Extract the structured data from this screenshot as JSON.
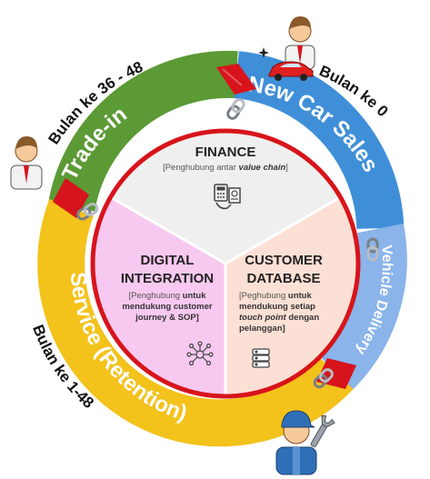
{
  "ring_segments": {
    "new_car_sales": "New Car Sales",
    "vehicle_delivery": "Vehicle Delivery",
    "service_retention": "Service (Retention)",
    "trade_in": "Trade-in"
  },
  "month_labels": {
    "new_car_sales": "Bulan ke 0",
    "trade_in": "Bulan ke 36 - 48",
    "service": "Bulan ke 1-48"
  },
  "center": {
    "finance": {
      "title": "FINANCE",
      "sub_prefix": "[Penghubung antar ",
      "sub_emphasis": "value chain",
      "sub_suffix": "]"
    },
    "digital_integration": {
      "title_line1": "DIGITAL",
      "title_line2": "INTEGRATION",
      "sub_line1_prefix": "[Penghubung ",
      "sub_line1_bold": "untuk",
      "sub_line2": "mendukung customer",
      "sub_line3": "journey & SOP]"
    },
    "customer_database": {
      "title_line1": "CUSTOMER",
      "title_line2": "DATABASE",
      "sub_line1_prefix": "[Peghubung ",
      "sub_line1_bold": "untuk",
      "sub_line2": "mendukung setiap",
      "sub_line3_emphasis": "touch point",
      "sub_line3_suffix": " dengan",
      "sub_line4": "pelanggan]"
    }
  },
  "colors": {
    "new_car_sales": "#3f8fd8",
    "vehicle_delivery": "#8ab4ea",
    "service_retention": "#f3c21b",
    "trade_in": "#5b9a35",
    "finance_sector": "#efefef",
    "digital_sector": "#f7c9f0",
    "customer_sector": "#fde0d5",
    "inner_ring": "#d7141b"
  },
  "icons": [
    "salesman-icon",
    "red-car-icon",
    "sparkle-icon",
    "dealer-person-icon",
    "mechanic-icon",
    "wrench-icon",
    "chain-link-icon",
    "finance-calculator-icon",
    "network-icon",
    "database-icon",
    "chevron-arrow-icon"
  ]
}
